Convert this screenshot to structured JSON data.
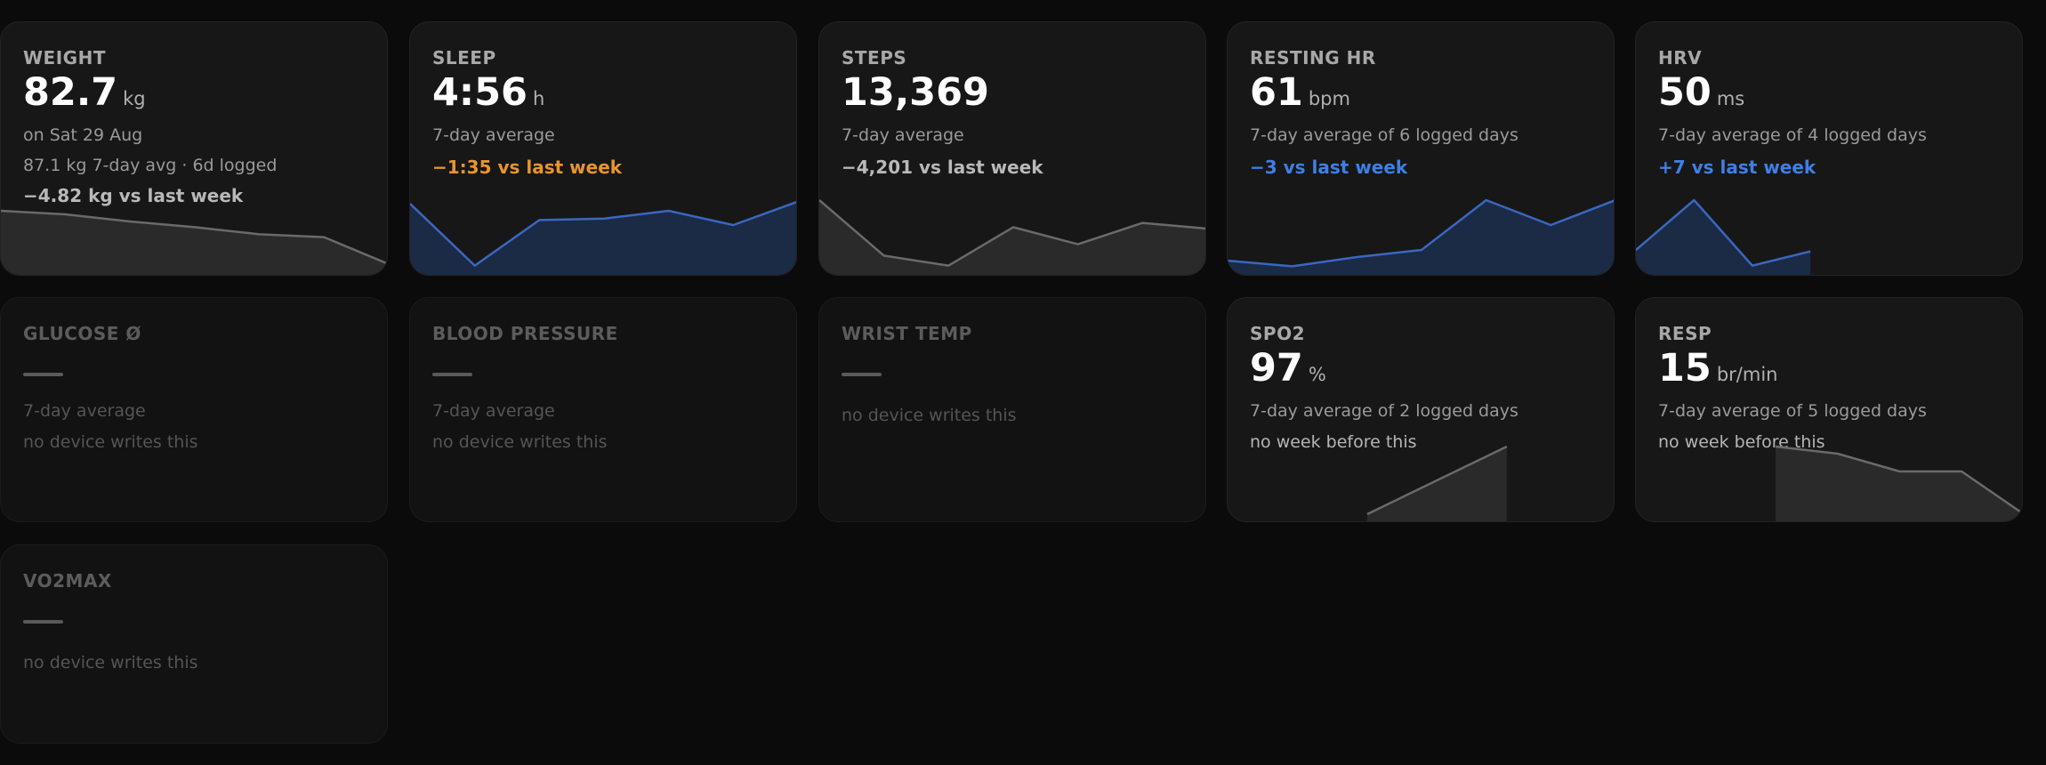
{
  "cards": {
    "weight": {
      "label": "WEIGHT",
      "value": "82.7",
      "unit": "kg",
      "line1": "on Sat 29 Aug",
      "line2": "87.1 kg 7-day avg · 6d logged",
      "delta": "−4.82 kg vs last week",
      "delta_color": "#b9b9b9",
      "sparkline": [
        0.85,
        0.8,
        0.7,
        0.62,
        0.52,
        0.48,
        0.1
      ]
    },
    "sleep": {
      "label": "SLEEP",
      "value": "4:56",
      "unit": "h",
      "line1": "7-day average",
      "delta": "−1:35 vs last week",
      "delta_color": "#e8952f",
      "sparkline": [
        0.95,
        0.08,
        0.72,
        0.74,
        0.85,
        0.65,
        0.98
      ]
    },
    "steps": {
      "label": "STEPS",
      "value": "13,369",
      "line1": "7-day average",
      "delta": "−4,201 vs last week",
      "delta_color": "#b9b9b9",
      "sparkline": [
        1.0,
        0.22,
        0.08,
        0.62,
        0.38,
        0.68,
        0.6
      ]
    },
    "resting_hr": {
      "label": "RESTING HR",
      "value": "61",
      "unit": "bpm",
      "line1": "7-day average of 6 logged days",
      "delta": "−3 vs last week",
      "delta_color": "#3f7fe6",
      "sparkline": [
        0.15,
        0.07,
        0.2,
        0.3,
        1.0,
        0.65,
        1.0
      ]
    },
    "hrv": {
      "label": "HRV",
      "value": "50",
      "unit": "ms",
      "line1": "7-day average of 4 logged days",
      "delta": "+7 vs last week",
      "delta_color": "#3f7fe6",
      "sparkline": [
        0.3,
        1.0,
        0.08,
        0.28
      ]
    },
    "glucose": {
      "label": "GLUCOSE Ø",
      "line1": "7-day average",
      "line2": "no device writes this"
    },
    "blood_pressure": {
      "label": "BLOOD PRESSURE",
      "line1": "7-day average",
      "line2": "no device writes this"
    },
    "wrist_temp": {
      "label": "WRIST TEMP",
      "line1": "no device writes this"
    },
    "spo2": {
      "label": "SPO2",
      "value": "97",
      "unit": "%",
      "line1": "7-day average of 2 logged days",
      "line2": "no week before this",
      "sparkline": [
        0.05,
        1.0
      ]
    },
    "resp": {
      "label": "RESP",
      "value": "15",
      "unit": "br/min",
      "line1": "7-day average of 5 logged days",
      "line2": "no week before this",
      "sparkline": [
        1.0,
        0.9,
        0.65,
        0.65,
        0.05
      ]
    },
    "vo2max": {
      "label": "VO2MAX",
      "line1": "no device writes this"
    }
  }
}
